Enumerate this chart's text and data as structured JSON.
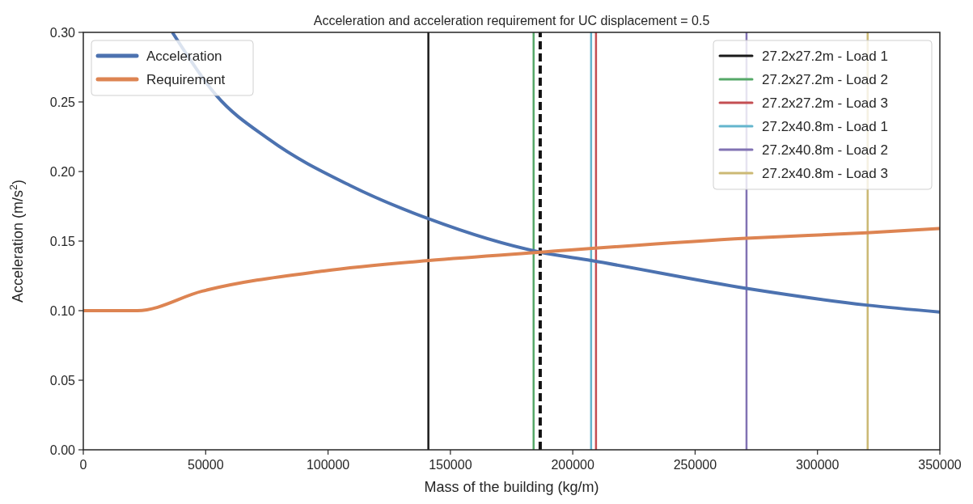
{
  "chart_data": {
    "type": "line",
    "title": "Acceleration and acceleration requirement for UC displacement = 0.5",
    "xlabel": "Mass of the building (kg/m)",
    "ylabel": "Acceleration (m/s$^{2}$)",
    "x": [
      36400,
      54200,
      76000,
      109000,
      141100,
      186700,
      207500,
      271000,
      320000,
      350000
    ],
    "series": [
      {
        "name": "Acceleration",
        "color": "#4c72b0",
        "values": [
          0.3,
          0.255,
          0.223,
          0.19,
          0.166,
          0.142,
          0.136,
          0.116,
          0.104,
          0.099
        ]
      },
      {
        "name": "Requirement",
        "color": "#dd8452",
        "x": [
          0,
          22100,
          48600,
          98200,
          141100,
          186700,
          271000,
          320000,
          350000
        ],
        "values": [
          0.1,
          0.1,
          0.114,
          0.1285,
          0.136,
          0.142,
          0.152,
          0.156,
          0.159
        ]
      },
      {
        "name": "27.2x27.2m - Load 1",
        "color": "#1a1a1a",
        "x": [
          141000,
          141000
        ],
        "values": [
          0,
          0.3
        ]
      },
      {
        "name": "27.2x27.2m - Load 2",
        "color": "#55a868",
        "x": [
          184000,
          184000
        ],
        "values": [
          0,
          0.3
        ]
      },
      {
        "name": "27.2x27.2m - Load 3",
        "color": "#c44e52",
        "x": [
          209500,
          209500
        ],
        "values": [
          0,
          0.3
        ]
      },
      {
        "name": "27.2x40.8m - Load 1",
        "color": "#64b5cd",
        "x": [
          207500,
          207500
        ],
        "values": [
          0,
          0.3
        ]
      },
      {
        "name": "27.2x40.8m - Load 2",
        "color": "#8172b3",
        "x": [
          271000,
          271000
        ],
        "values": [
          0,
          0.3
        ]
      },
      {
        "name": "27.2x40.8m - Load 3",
        "color": "#ccb974",
        "x": [
          320500,
          320500
        ],
        "values": [
          0,
          0.3
        ]
      },
      {
        "color": "#111111",
        "x": [
          186700,
          186700
        ],
        "values": [
          0,
          0.3
        ],
        "line_style": "dashed"
      }
    ],
    "xlim": [
      0,
      350000
    ],
    "xticks": [
      0,
      50000,
      100000,
      150000,
      200000,
      250000,
      300000,
      350000
    ],
    "ylim": [
      0,
      0.3
    ],
    "yticks": [
      {
        "value": 0,
        "label": "0.00"
      },
      {
        "value": 0.05,
        "label": "0.05"
      },
      {
        "value": 0.1,
        "label": "0.10"
      },
      {
        "value": 0.15,
        "label": "0.15"
      },
      {
        "value": 0.2,
        "label": "0.20"
      },
      {
        "value": 0.25,
        "label": "0.25"
      },
      {
        "value": 0.3,
        "label": "0.30"
      }
    ],
    "grid": false,
    "legend": "top left",
    "line_style": "solid",
    "marker": "none"
  }
}
